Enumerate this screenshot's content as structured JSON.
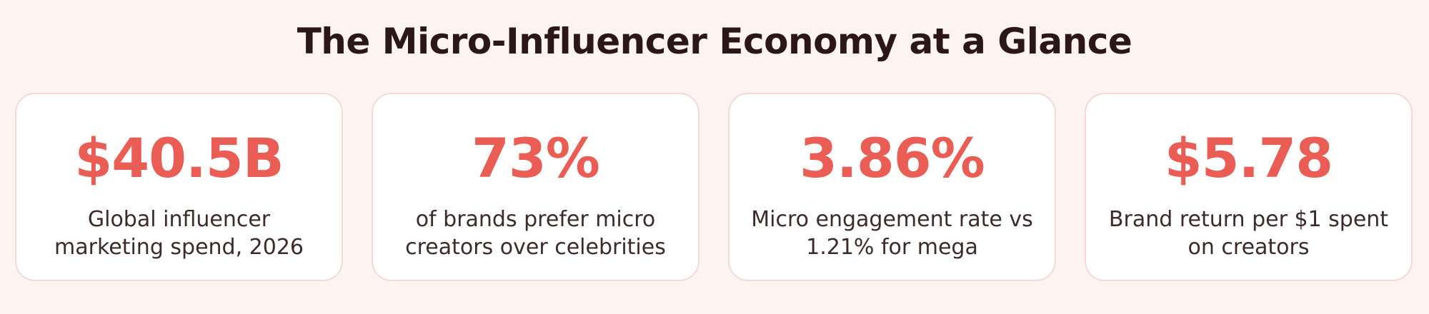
{
  "page": {
    "title": "The Micro-Influencer Economy at a Glance"
  },
  "stats": [
    {
      "value": "$40.5B",
      "label": "Global influencer marketing spend, 2026"
    },
    {
      "value": "73%",
      "label": "of brands prefer micro creators over celebrities"
    },
    {
      "value": "3.86%",
      "label": "Micro engagement rate vs 1.21% for mega"
    },
    {
      "value": "$5.78",
      "label": "Brand return per $1 spent on creators"
    }
  ],
  "colors": {
    "background": "#fdf4f2",
    "title": "#2a1716",
    "accent": "#ea5d55",
    "label": "#3c2b2a",
    "card_border": "#f4d9d5"
  }
}
